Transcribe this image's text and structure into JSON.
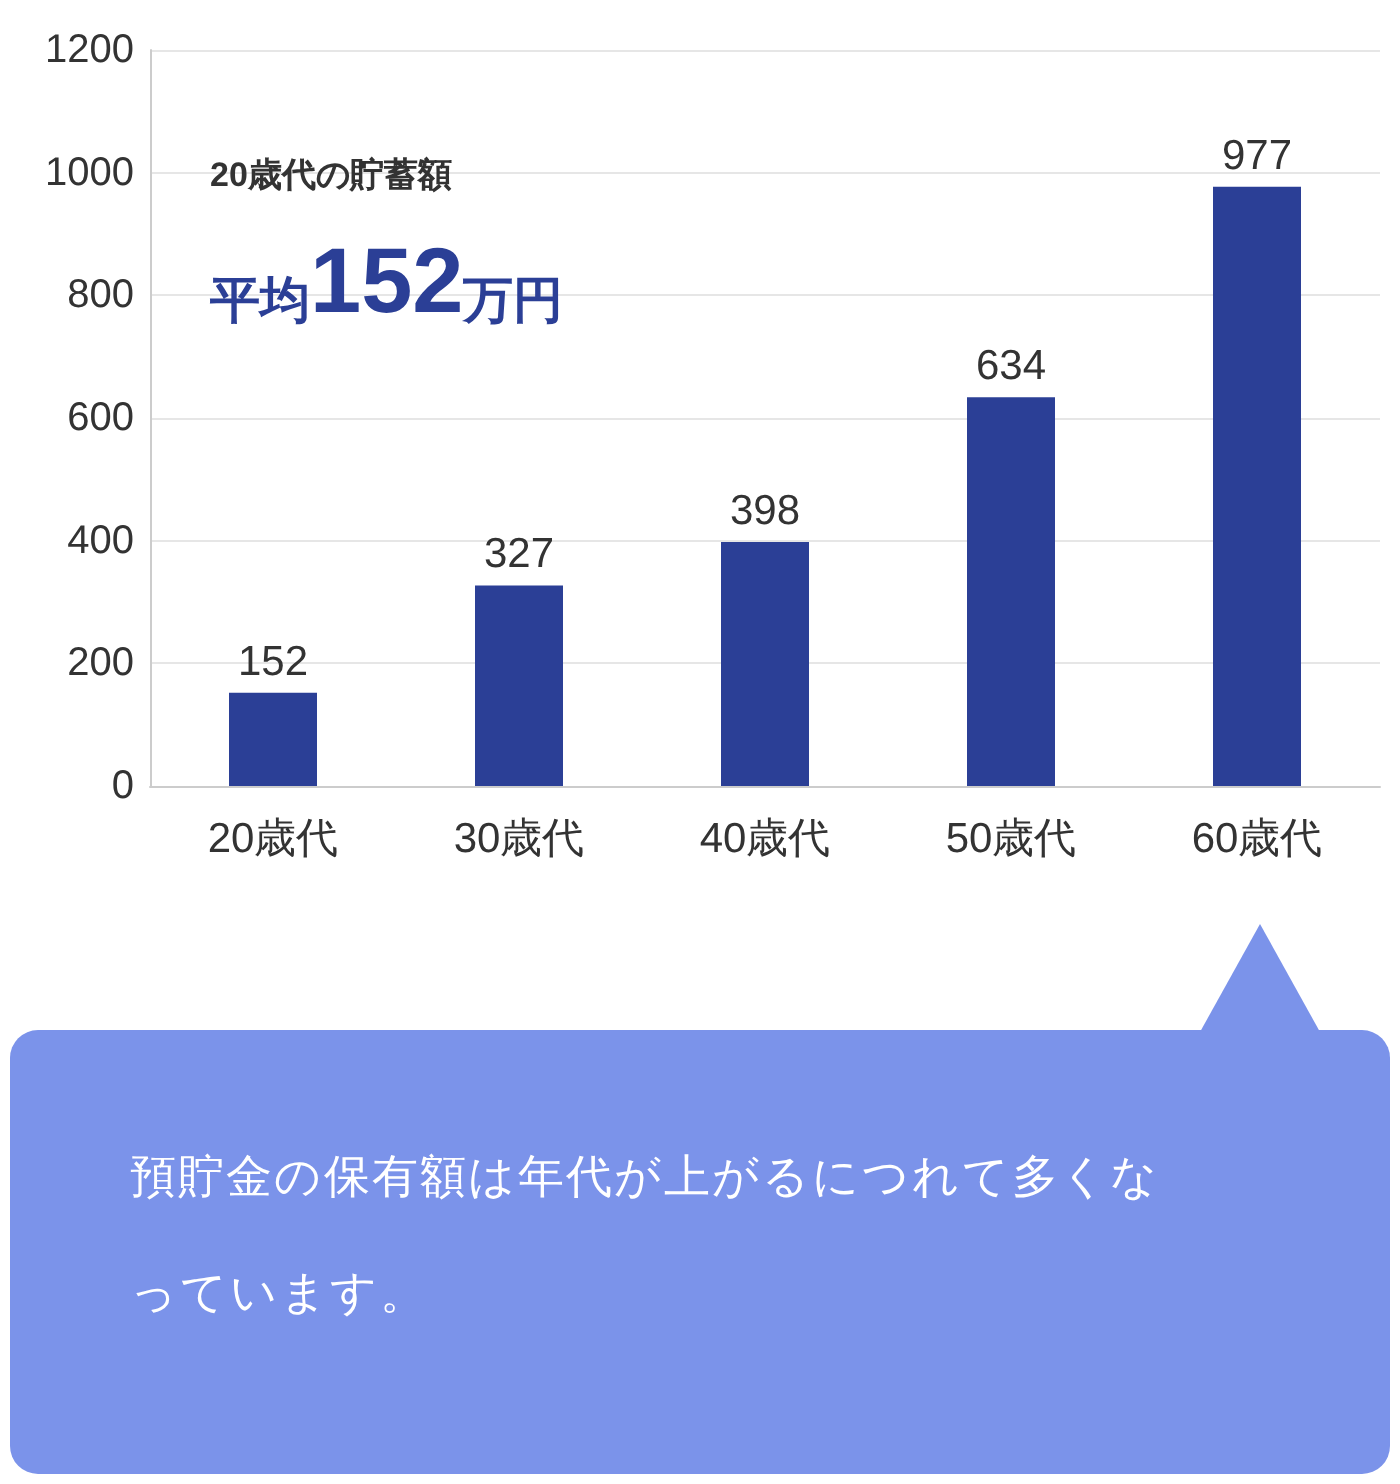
{
  "chart_data": {
    "type": "bar",
    "title": "20歳代の貯蓄額",
    "subtitle": "平均152万円",
    "categories": [
      "20歳代",
      "30歳代",
      "40歳代",
      "50歳代",
      "60歳代"
    ],
    "values": [
      152,
      327,
      398,
      634,
      977
    ],
    "color": "#2b3f96",
    "ylim": [
      0,
      1200
    ],
    "yticks": [
      0,
      200,
      400,
      600,
      800,
      1000,
      1200
    ],
    "grid": "y",
    "data_labels": true,
    "annotations": [
      "預貯金の保有額は年代が上がるにつれて多くなっています。"
    ]
  }
}
